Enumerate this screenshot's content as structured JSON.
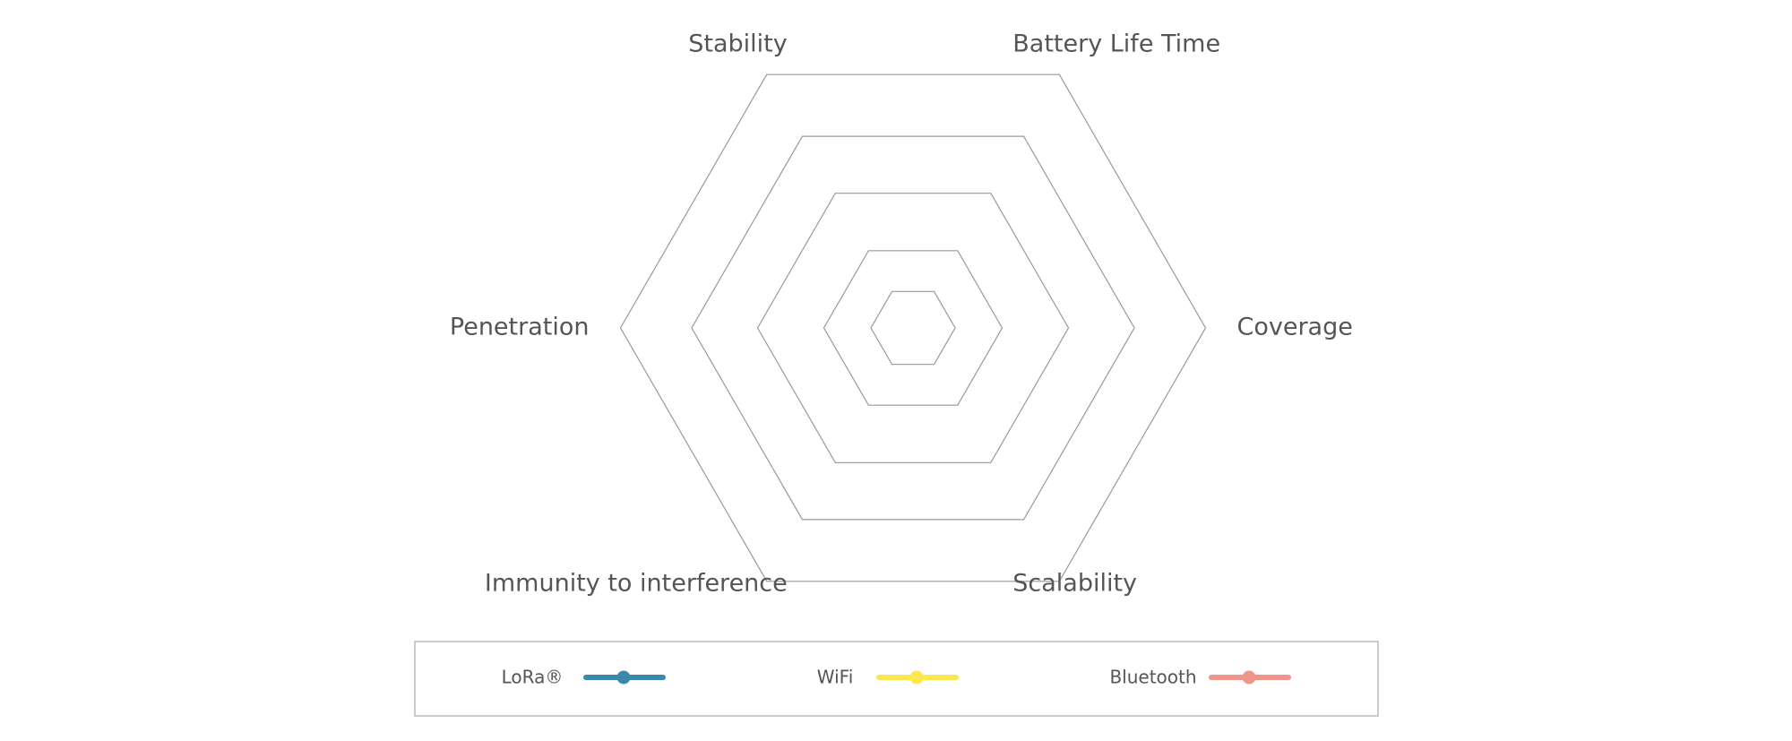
{
  "chart_data": {
    "type": "radar",
    "categories": [
      "Battery Life Time",
      "Coverage",
      "Scalability",
      "Immunity to interference",
      "Penetration",
      "Stability"
    ],
    "series": [
      {
        "name": "LoRa®",
        "color": "#3b88ae"
      },
      {
        "name": "WiFi",
        "color": "#fde74c"
      },
      {
        "name": "Bluetooth",
        "color": "#f0958a"
      }
    ]
  }
}
